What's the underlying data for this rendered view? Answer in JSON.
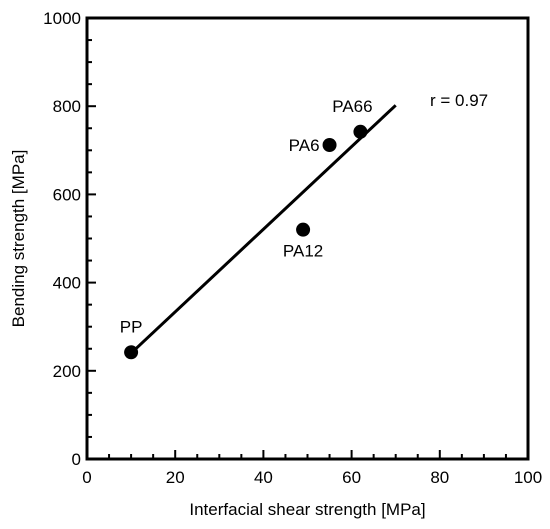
{
  "chart_data": {
    "type": "scatter",
    "title": "",
    "xlabel": "Interfacial shear strength [MPa]",
    "ylabel": "Bending strength [MPa]",
    "xlim": [
      0,
      100
    ],
    "ylim": [
      0,
      1000
    ],
    "x_ticks": [
      0,
      20,
      40,
      60,
      80,
      100
    ],
    "y_ticks": [
      0,
      200,
      400,
      600,
      800,
      1000
    ],
    "x_minor_step": 5,
    "y_minor_step": 50,
    "grid": false,
    "points": [
      {
        "label": "PP",
        "x": 10,
        "y": 242
      },
      {
        "label": "PA12",
        "x": 49,
        "y": 520
      },
      {
        "label": "PA6",
        "x": 55,
        "y": 712
      },
      {
        "label": "PA66",
        "x": 62,
        "y": 742
      }
    ],
    "fit_line": {
      "x": [
        10,
        70
      ],
      "y": [
        240,
        802
      ]
    },
    "annotation": "r = 0.97"
  }
}
